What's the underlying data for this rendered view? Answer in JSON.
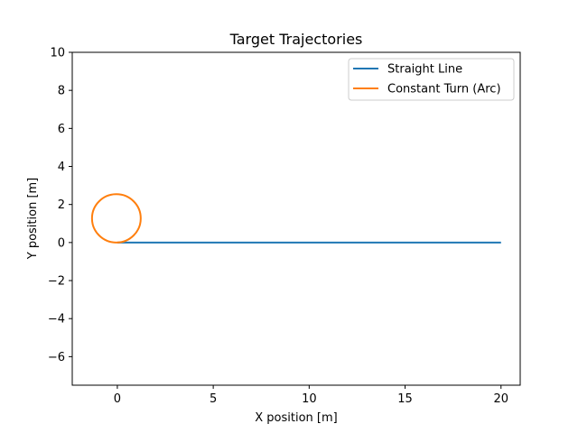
{
  "chart_data": {
    "type": "line",
    "title": "Target Trajectories",
    "xlabel": "X position [m]",
    "ylabel": "Y position [m]",
    "xlim": [
      -2.35,
      21.0
    ],
    "ylim": [
      -7.5,
      10
    ],
    "x_ticks": [
      0,
      5,
      10,
      15,
      20
    ],
    "y_ticks": [
      -6,
      -4,
      -2,
      0,
      2,
      4,
      6,
      8,
      10
    ],
    "grid": false,
    "legend_position": "top-right",
    "series": [
      {
        "name": "Straight Line",
        "color": "#1f77b4",
        "shape": "line",
        "x": [
          0,
          20
        ],
        "y": [
          0,
          0
        ]
      },
      {
        "name": "Constant Turn (Arc)",
        "color": "#ff7f0e",
        "shape": "circle",
        "center": [
          -0.05,
          1.27
        ],
        "radius": 1.27
      }
    ]
  }
}
